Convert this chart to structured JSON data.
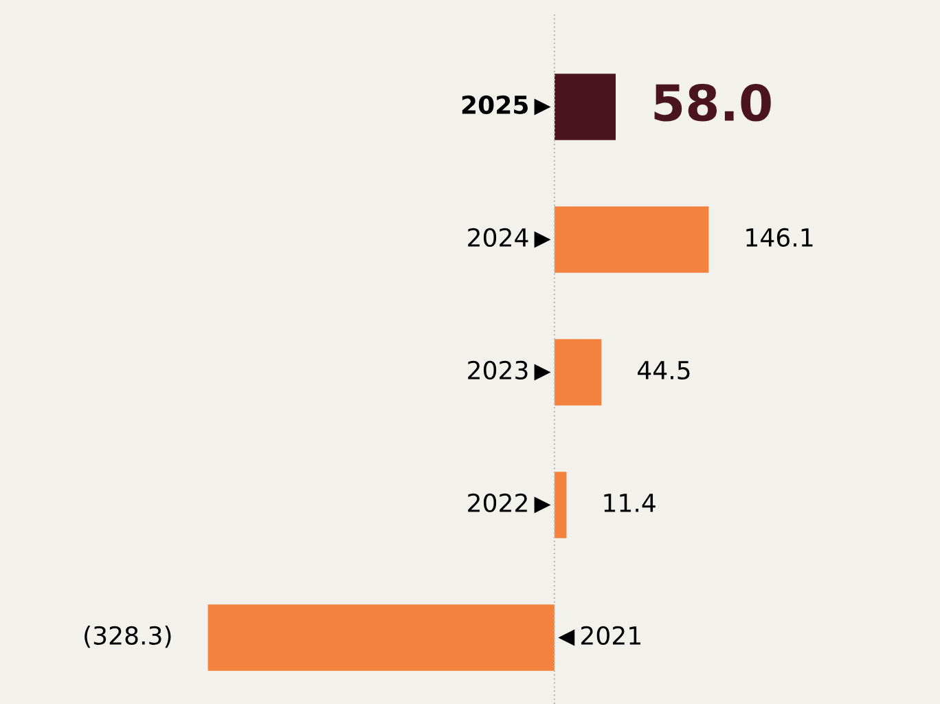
{
  "chart_data": {
    "type": "bar",
    "orientation": "horizontal",
    "categories": [
      "2025",
      "2024",
      "2023",
      "2022",
      "2021"
    ],
    "values": [
      58.0,
      146.1,
      44.5,
      11.4,
      -328.3
    ],
    "colors": [
      "#4a1420",
      "#f4823f",
      "#f4823f",
      "#f4823f",
      "#f4823f"
    ],
    "value_labels": [
      "58.0",
      "146.1",
      "44.5",
      "11.4",
      "(328.3)"
    ],
    "ref_lines": [
      {
        "axis": "x",
        "value": 0,
        "color": "#bbbbbb",
        "line_style": "dotted"
      }
    ],
    "legend": false
  }
}
